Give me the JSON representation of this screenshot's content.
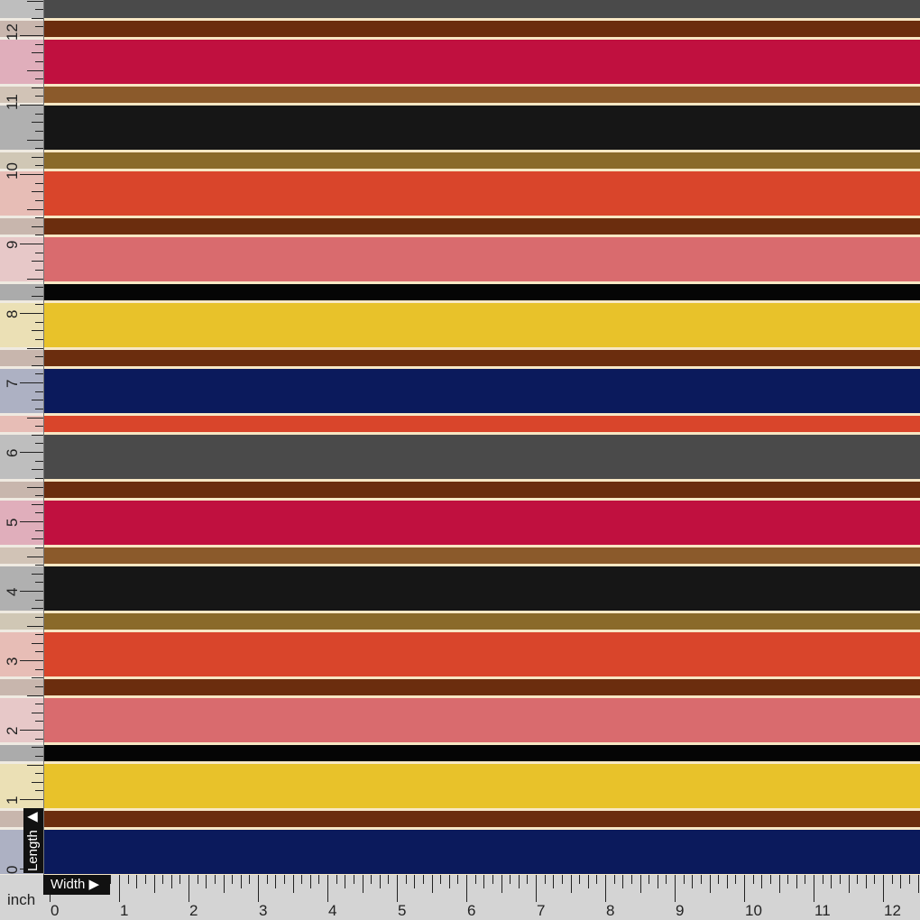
{
  "fabric": {
    "cream_line_color": "#f7e7c4",
    "stripes": [
      {
        "color": "#4a4a4a",
        "kind": "wide-partial"
      },
      {
        "color": "#6b2d0e",
        "kind": "narrow"
      },
      {
        "color": "#c0103f",
        "kind": "wide"
      },
      {
        "color": "#8b5a2b",
        "kind": "narrow"
      },
      {
        "color": "#161616",
        "kind": "wide"
      },
      {
        "color": "#8a6a2a",
        "kind": "narrow"
      },
      {
        "color": "#d9452b",
        "kind": "wide"
      },
      {
        "color": "#6b2d0e",
        "kind": "narrow"
      },
      {
        "color": "#d96b6e",
        "kind": "wide"
      },
      {
        "color": "#050505",
        "kind": "narrow"
      },
      {
        "color": "#e8c22a",
        "kind": "wide"
      },
      {
        "color": "#6b2d0e",
        "kind": "narrow"
      },
      {
        "color": "#0b1a5c",
        "kind": "wide"
      },
      {
        "color": "#d9452b",
        "kind": "narrow"
      },
      {
        "color": "#4a4a4a",
        "kind": "wide"
      },
      {
        "color": "#6b2d0e",
        "kind": "narrow"
      },
      {
        "color": "#c0103f",
        "kind": "wide"
      },
      {
        "color": "#8b5a2b",
        "kind": "narrow"
      },
      {
        "color": "#161616",
        "kind": "wide"
      },
      {
        "color": "#8a6a2a",
        "kind": "narrow"
      },
      {
        "color": "#d9452b",
        "kind": "wide"
      },
      {
        "color": "#6b2d0e",
        "kind": "narrow"
      },
      {
        "color": "#d96b6e",
        "kind": "wide"
      },
      {
        "color": "#050505",
        "kind": "narrow"
      },
      {
        "color": "#e8c22a",
        "kind": "wide"
      },
      {
        "color": "#6b2d0e",
        "kind": "narrow"
      },
      {
        "color": "#0b1a5c",
        "kind": "wide"
      },
      {
        "color": "#d9452b",
        "kind": "narrow"
      }
    ]
  },
  "ruler": {
    "unit": "inch",
    "length_label": "Length ▶",
    "width_label": "Width ▶",
    "length_marks": [
      "0",
      "1",
      "2",
      "3",
      "4",
      "5",
      "6",
      "7",
      "8",
      "9",
      "10",
      "11",
      "12"
    ],
    "width_marks": [
      "0",
      "1",
      "2",
      "3",
      "4",
      "5",
      "6",
      "7",
      "8",
      "9",
      "10",
      "11",
      "12"
    ]
  }
}
